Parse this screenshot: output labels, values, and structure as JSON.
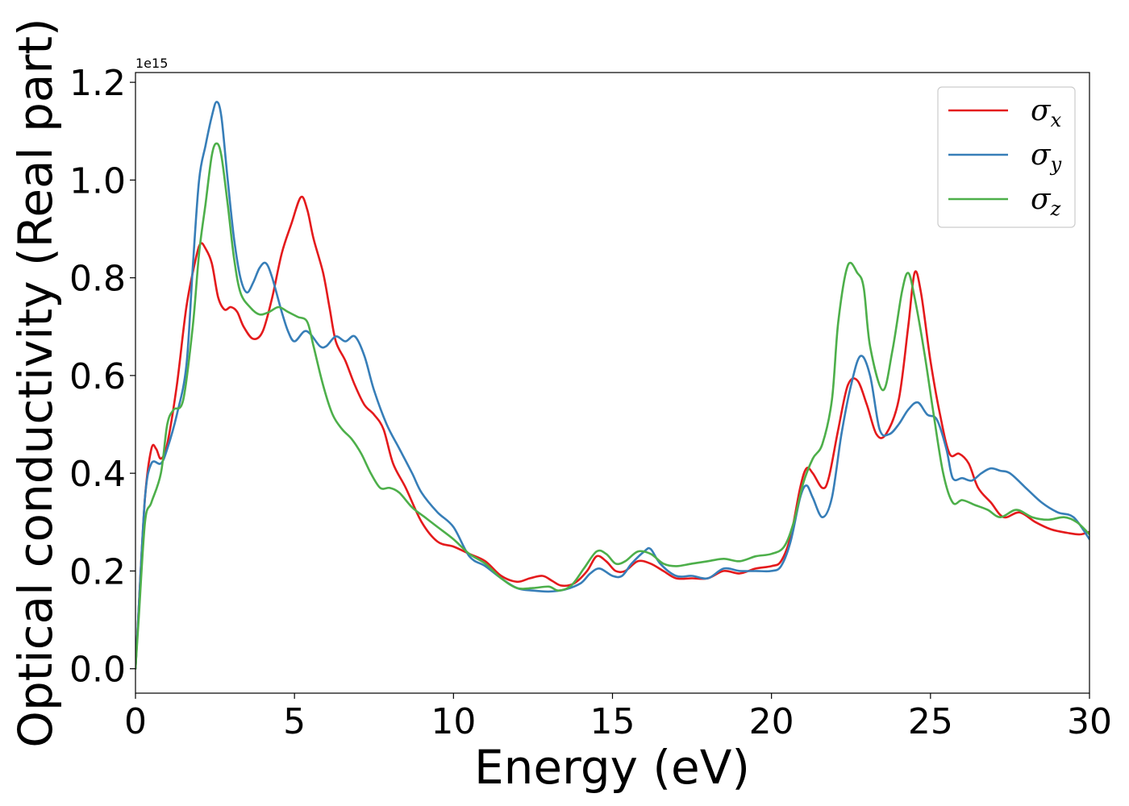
{
  "chart_data": {
    "type": "line",
    "title": "",
    "xlabel": "Energy (eV)",
    "ylabel": "Optical conductivity (Real part)",
    "y_offset_label": "1e15",
    "xlim": [
      0,
      30
    ],
    "ylim": [
      -0.05,
      1.22
    ],
    "x_ticks": [
      0,
      5,
      10,
      15,
      20,
      25,
      30
    ],
    "x_tick_labels": [
      "0",
      "5",
      "10",
      "15",
      "20",
      "25",
      "30"
    ],
    "y_ticks": [
      0.0,
      0.2,
      0.4,
      0.6,
      0.8,
      1.0,
      1.2
    ],
    "y_tick_labels": [
      "0.0",
      "0.2",
      "0.4",
      "0.6",
      "0.8",
      "1.0",
      "1.2"
    ],
    "grid": false,
    "legend_position": "top-right",
    "series": [
      {
        "name": "σx",
        "symbol": "σ",
        "subscript": "x",
        "color": "#e41a1c",
        "points": [
          [
            0,
            0
          ],
          [
            0.1,
            0.12
          ],
          [
            0.3,
            0.35
          ],
          [
            0.5,
            0.45
          ],
          [
            0.65,
            0.45
          ],
          [
            0.8,
            0.43
          ],
          [
            1.0,
            0.46
          ],
          [
            1.3,
            0.58
          ],
          [
            1.6,
            0.74
          ],
          [
            1.9,
            0.84
          ],
          [
            2.05,
            0.87
          ],
          [
            2.2,
            0.86
          ],
          [
            2.4,
            0.83
          ],
          [
            2.6,
            0.76
          ],
          [
            2.8,
            0.735
          ],
          [
            3.0,
            0.74
          ],
          [
            3.2,
            0.73
          ],
          [
            3.4,
            0.7
          ],
          [
            3.7,
            0.675
          ],
          [
            4.0,
            0.69
          ],
          [
            4.3,
            0.76
          ],
          [
            4.6,
            0.85
          ],
          [
            4.9,
            0.91
          ],
          [
            5.2,
            0.965
          ],
          [
            5.4,
            0.94
          ],
          [
            5.6,
            0.88
          ],
          [
            5.9,
            0.81
          ],
          [
            6.1,
            0.74
          ],
          [
            6.3,
            0.67
          ],
          [
            6.6,
            0.63
          ],
          [
            6.9,
            0.58
          ],
          [
            7.2,
            0.54
          ],
          [
            7.5,
            0.52
          ],
          [
            7.8,
            0.49
          ],
          [
            8.1,
            0.42
          ],
          [
            8.5,
            0.37
          ],
          [
            9.0,
            0.3
          ],
          [
            9.5,
            0.26
          ],
          [
            10.0,
            0.25
          ],
          [
            10.5,
            0.235
          ],
          [
            11.0,
            0.22
          ],
          [
            11.5,
            0.19
          ],
          [
            12.0,
            0.178
          ],
          [
            12.4,
            0.185
          ],
          [
            12.8,
            0.19
          ],
          [
            13.1,
            0.18
          ],
          [
            13.4,
            0.17
          ],
          [
            13.8,
            0.175
          ],
          [
            14.2,
            0.2
          ],
          [
            14.5,
            0.23
          ],
          [
            14.8,
            0.22
          ],
          [
            15.1,
            0.2
          ],
          [
            15.4,
            0.2
          ],
          [
            15.8,
            0.22
          ],
          [
            16.2,
            0.215
          ],
          [
            16.6,
            0.2
          ],
          [
            17.0,
            0.185
          ],
          [
            17.5,
            0.185
          ],
          [
            18.0,
            0.185
          ],
          [
            18.5,
            0.2
          ],
          [
            19.0,
            0.195
          ],
          [
            19.5,
            0.205
          ],
          [
            20.0,
            0.21
          ],
          [
            20.3,
            0.22
          ],
          [
            20.6,
            0.27
          ],
          [
            20.9,
            0.37
          ],
          [
            21.1,
            0.41
          ],
          [
            21.3,
            0.4
          ],
          [
            21.6,
            0.37
          ],
          [
            21.8,
            0.39
          ],
          [
            22.1,
            0.49
          ],
          [
            22.4,
            0.58
          ],
          [
            22.7,
            0.59
          ],
          [
            23.0,
            0.54
          ],
          [
            23.3,
            0.48
          ],
          [
            23.6,
            0.48
          ],
          [
            24.0,
            0.55
          ],
          [
            24.3,
            0.7
          ],
          [
            24.5,
            0.81
          ],
          [
            24.7,
            0.77
          ],
          [
            25.0,
            0.63
          ],
          [
            25.3,
            0.52
          ],
          [
            25.6,
            0.44
          ],
          [
            25.9,
            0.44
          ],
          [
            26.2,
            0.42
          ],
          [
            26.5,
            0.37
          ],
          [
            26.9,
            0.34
          ],
          [
            27.3,
            0.31
          ],
          [
            27.8,
            0.32
          ],
          [
            28.3,
            0.3
          ],
          [
            28.8,
            0.285
          ],
          [
            29.3,
            0.278
          ],
          [
            29.7,
            0.275
          ],
          [
            30,
            0.28
          ]
        ]
      },
      {
        "name": "σy",
        "symbol": "σ",
        "subscript": "y",
        "color": "#377eb8",
        "points": [
          [
            0,
            0
          ],
          [
            0.1,
            0.12
          ],
          [
            0.3,
            0.35
          ],
          [
            0.5,
            0.42
          ],
          [
            0.8,
            0.42
          ],
          [
            1.0,
            0.45
          ],
          [
            1.3,
            0.52
          ],
          [
            1.6,
            0.62
          ],
          [
            1.8,
            0.82
          ],
          [
            2.0,
            1.0
          ],
          [
            2.2,
            1.07
          ],
          [
            2.4,
            1.13
          ],
          [
            2.55,
            1.16
          ],
          [
            2.7,
            1.13
          ],
          [
            2.9,
            1.0
          ],
          [
            3.1,
            0.88
          ],
          [
            3.3,
            0.8
          ],
          [
            3.5,
            0.77
          ],
          [
            3.7,
            0.79
          ],
          [
            3.9,
            0.82
          ],
          [
            4.1,
            0.83
          ],
          [
            4.3,
            0.8
          ],
          [
            4.6,
            0.73
          ],
          [
            4.8,
            0.69
          ],
          [
            5.0,
            0.67
          ],
          [
            5.3,
            0.69
          ],
          [
            5.5,
            0.685
          ],
          [
            5.8,
            0.66
          ],
          [
            6.0,
            0.66
          ],
          [
            6.3,
            0.68
          ],
          [
            6.6,
            0.67
          ],
          [
            6.9,
            0.68
          ],
          [
            7.2,
            0.64
          ],
          [
            7.5,
            0.57
          ],
          [
            7.9,
            0.5
          ],
          [
            8.3,
            0.45
          ],
          [
            8.7,
            0.4
          ],
          [
            9.0,
            0.36
          ],
          [
            9.5,
            0.32
          ],
          [
            10.0,
            0.29
          ],
          [
            10.5,
            0.23
          ],
          [
            11.0,
            0.21
          ],
          [
            11.5,
            0.185
          ],
          [
            12.0,
            0.165
          ],
          [
            12.5,
            0.16
          ],
          [
            13.0,
            0.158
          ],
          [
            13.5,
            0.162
          ],
          [
            14.0,
            0.175
          ],
          [
            14.3,
            0.195
          ],
          [
            14.6,
            0.205
          ],
          [
            15.0,
            0.19
          ],
          [
            15.3,
            0.19
          ],
          [
            15.6,
            0.215
          ],
          [
            16.0,
            0.24
          ],
          [
            16.2,
            0.245
          ],
          [
            16.5,
            0.215
          ],
          [
            17.0,
            0.19
          ],
          [
            17.5,
            0.19
          ],
          [
            18.0,
            0.185
          ],
          [
            18.5,
            0.205
          ],
          [
            19.0,
            0.2
          ],
          [
            19.5,
            0.2
          ],
          [
            20.0,
            0.2
          ],
          [
            20.3,
            0.21
          ],
          [
            20.6,
            0.26
          ],
          [
            20.9,
            0.35
          ],
          [
            21.1,
            0.375
          ],
          [
            21.3,
            0.35
          ],
          [
            21.6,
            0.31
          ],
          [
            21.9,
            0.35
          ],
          [
            22.2,
            0.48
          ],
          [
            22.5,
            0.58
          ],
          [
            22.8,
            0.64
          ],
          [
            23.1,
            0.6
          ],
          [
            23.4,
            0.49
          ],
          [
            23.7,
            0.48
          ],
          [
            24.0,
            0.5
          ],
          [
            24.3,
            0.53
          ],
          [
            24.6,
            0.545
          ],
          [
            24.9,
            0.52
          ],
          [
            25.2,
            0.51
          ],
          [
            25.5,
            0.45
          ],
          [
            25.7,
            0.39
          ],
          [
            26.0,
            0.39
          ],
          [
            26.3,
            0.385
          ],
          [
            26.6,
            0.4
          ],
          [
            26.9,
            0.41
          ],
          [
            27.2,
            0.405
          ],
          [
            27.5,
            0.4
          ],
          [
            28.0,
            0.37
          ],
          [
            28.5,
            0.34
          ],
          [
            29.0,
            0.32
          ],
          [
            29.5,
            0.31
          ],
          [
            30,
            0.265
          ]
        ]
      },
      {
        "name": "σz",
        "symbol": "σ",
        "subscript": "z",
        "color": "#4daf4a",
        "points": [
          [
            0,
            0
          ],
          [
            0.1,
            0.1
          ],
          [
            0.3,
            0.3
          ],
          [
            0.5,
            0.34
          ],
          [
            0.8,
            0.4
          ],
          [
            1.0,
            0.5
          ],
          [
            1.2,
            0.53
          ],
          [
            1.5,
            0.55
          ],
          [
            1.8,
            0.7
          ],
          [
            2.0,
            0.85
          ],
          [
            2.2,
            0.95
          ],
          [
            2.4,
            1.05
          ],
          [
            2.55,
            1.075
          ],
          [
            2.7,
            1.05
          ],
          [
            2.9,
            0.95
          ],
          [
            3.1,
            0.84
          ],
          [
            3.3,
            0.77
          ],
          [
            3.6,
            0.74
          ],
          [
            3.9,
            0.725
          ],
          [
            4.2,
            0.73
          ],
          [
            4.5,
            0.74
          ],
          [
            4.8,
            0.73
          ],
          [
            5.1,
            0.72
          ],
          [
            5.4,
            0.71
          ],
          [
            5.6,
            0.66
          ],
          [
            5.9,
            0.58
          ],
          [
            6.2,
            0.52
          ],
          [
            6.5,
            0.49
          ],
          [
            6.8,
            0.47
          ],
          [
            7.1,
            0.44
          ],
          [
            7.4,
            0.4
          ],
          [
            7.7,
            0.37
          ],
          [
            8.0,
            0.37
          ],
          [
            8.3,
            0.36
          ],
          [
            8.7,
            0.33
          ],
          [
            9.1,
            0.31
          ],
          [
            9.5,
            0.29
          ],
          [
            10.0,
            0.265
          ],
          [
            10.5,
            0.235
          ],
          [
            11.0,
            0.215
          ],
          [
            11.5,
            0.185
          ],
          [
            12.0,
            0.165
          ],
          [
            12.5,
            0.165
          ],
          [
            13.0,
            0.168
          ],
          [
            13.3,
            0.16
          ],
          [
            13.7,
            0.17
          ],
          [
            14.1,
            0.205
          ],
          [
            14.5,
            0.24
          ],
          [
            14.8,
            0.235
          ],
          [
            15.1,
            0.215
          ],
          [
            15.4,
            0.22
          ],
          [
            15.8,
            0.24
          ],
          [
            16.2,
            0.235
          ],
          [
            16.6,
            0.215
          ],
          [
            17.0,
            0.21
          ],
          [
            17.5,
            0.215
          ],
          [
            18.0,
            0.22
          ],
          [
            18.5,
            0.225
          ],
          [
            19.0,
            0.22
          ],
          [
            19.5,
            0.23
          ],
          [
            20.0,
            0.235
          ],
          [
            20.4,
            0.25
          ],
          [
            20.7,
            0.3
          ],
          [
            21.0,
            0.38
          ],
          [
            21.3,
            0.43
          ],
          [
            21.6,
            0.46
          ],
          [
            21.9,
            0.55
          ],
          [
            22.1,
            0.71
          ],
          [
            22.4,
            0.825
          ],
          [
            22.7,
            0.81
          ],
          [
            22.9,
            0.78
          ],
          [
            23.1,
            0.66
          ],
          [
            23.5,
            0.57
          ],
          [
            23.8,
            0.65
          ],
          [
            24.1,
            0.77
          ],
          [
            24.3,
            0.81
          ],
          [
            24.5,
            0.76
          ],
          [
            24.8,
            0.65
          ],
          [
            25.1,
            0.52
          ],
          [
            25.4,
            0.4
          ],
          [
            25.7,
            0.34
          ],
          [
            26.0,
            0.345
          ],
          [
            26.4,
            0.335
          ],
          [
            26.8,
            0.325
          ],
          [
            27.2,
            0.31
          ],
          [
            27.7,
            0.325
          ],
          [
            28.2,
            0.31
          ],
          [
            28.7,
            0.305
          ],
          [
            29.2,
            0.31
          ],
          [
            29.6,
            0.3
          ],
          [
            30,
            0.275
          ]
        ]
      }
    ]
  }
}
